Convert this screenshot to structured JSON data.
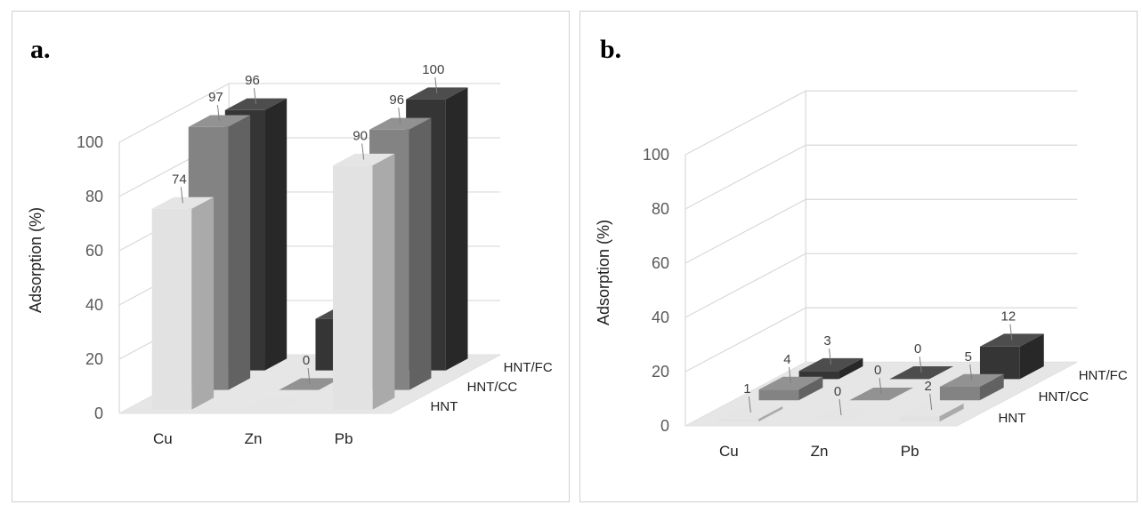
{
  "chart_data": [
    {
      "panel_label": "a.",
      "type": "bar",
      "style": "3d-clustered",
      "ylabel": "Adsorption (%)",
      "ylim": [
        0,
        100
      ],
      "ytick_labels": [
        "0",
        "20",
        "40",
        "60",
        "80",
        "100"
      ],
      "categories": [
        "Cu",
        "Zn",
        "Pb"
      ],
      "series": [
        {
          "name": "HNT",
          "values": [
            74,
            0,
            90
          ],
          "color": "#e2e2e2"
        },
        {
          "name": "HNT/CC",
          "values": [
            97,
            0,
            96
          ],
          "color": "#838383"
        },
        {
          "name": "HNT/FC",
          "values": [
            96,
            19,
            100
          ],
          "color": "#353535"
        }
      ],
      "data_labels": [
        [
          "74",
          "",
          "90"
        ],
        [
          "97",
          "0",
          "96"
        ],
        [
          "96",
          "19",
          "100"
        ]
      ],
      "grid": true
    },
    {
      "panel_label": "b.",
      "type": "bar",
      "style": "3d-clustered",
      "ylabel": "Adsorption (%)",
      "ylim": [
        0,
        100
      ],
      "ytick_labels": [
        "0",
        "20",
        "40",
        "60",
        "80",
        "100"
      ],
      "categories": [
        "Cu",
        "Zn",
        "Pb"
      ],
      "series": [
        {
          "name": "HNT",
          "values": [
            1,
            0,
            2
          ],
          "color": "#e2e2e2"
        },
        {
          "name": "HNT/CC",
          "values": [
            4,
            0,
            5
          ],
          "color": "#838383"
        },
        {
          "name": "HNT/FC",
          "values": [
            3,
            0,
            12
          ],
          "color": "#353535"
        }
      ],
      "data_labels": [
        [
          "1",
          "0",
          "2"
        ],
        [
          "4",
          "0",
          "5"
        ],
        [
          "3",
          "0",
          "12"
        ]
      ],
      "grid": true
    }
  ]
}
